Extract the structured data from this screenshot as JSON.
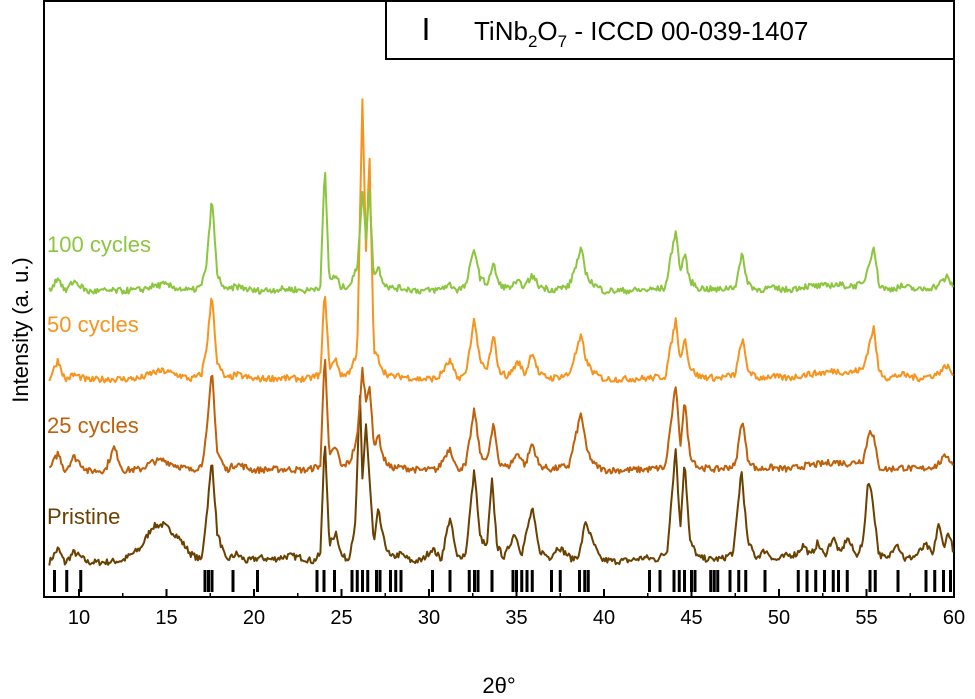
{
  "chart_data": {
    "type": "line",
    "xlabel": "2θ°",
    "ylabel": "Intensity (a. u.)",
    "xlim": [
      8,
      60
    ],
    "x_ticks": [
      10,
      15,
      20,
      25,
      30,
      35,
      40,
      45,
      50,
      55,
      60
    ],
    "x_tick_labels": [
      "10",
      "15",
      "20",
      "25",
      "30",
      "35",
      "40",
      "45",
      "50",
      "55",
      "60"
    ],
    "y_ticks_shown": false,
    "legend": {
      "placement": "top-right",
      "entry": {
        "compound_base": "TiNb",
        "sub1": "2",
        "mid": "O",
        "sub2": "7",
        "suffix": " - ICCD 00-039-1407"
      }
    },
    "series": [
      {
        "name": "Pristine",
        "color": "#6b4100",
        "baseline": 0,
        "x": [
          8.3,
          8.8,
          9.2,
          9.7,
          10.5,
          11.5,
          12.5,
          13.5,
          14.2,
          14.8,
          15.6,
          16.4,
          17.0,
          17.3,
          17.6,
          17.9,
          18.4,
          19.0,
          19.6,
          20.3,
          21.0,
          22.0,
          22.7,
          23.4,
          23.8,
          24.05,
          24.3,
          24.7,
          25.0,
          25.4,
          25.8,
          26.05,
          26.2,
          26.4,
          26.6,
          26.85,
          27.1,
          27.4,
          27.8,
          28.4,
          29.0,
          29.6,
          30.2,
          30.7,
          31.2,
          31.6,
          32.1,
          32.6,
          32.9,
          33.3,
          33.6,
          33.9,
          34.3,
          34.9,
          35.3,
          35.9,
          36.3,
          36.9,
          37.4,
          38.2,
          38.6,
          38.95,
          39.3,
          39.8,
          40.6,
          41.5,
          42.3,
          43.0,
          43.6,
          44.1,
          44.35,
          44.6,
          44.9,
          45.4,
          46.1,
          46.8,
          47.4,
          47.85,
          48.2,
          48.7,
          49.2,
          49.8,
          50.4,
          51.0,
          51.4,
          51.8,
          52.2,
          52.6,
          53.1,
          53.5,
          53.9,
          54.4,
          54.8,
          55.1,
          55.35,
          55.7,
          56.2,
          56.7,
          57.2,
          57.8,
          58.4,
          58.8,
          59.1,
          59.4,
          59.7,
          60.0
        ],
        "y": [
          0.03,
          0.18,
          0.02,
          0.14,
          0.03,
          0.03,
          0.05,
          0.18,
          0.42,
          0.44,
          0.32,
          0.12,
          0.05,
          0.55,
          1.15,
          0.35,
          0.05,
          0.12,
          0.04,
          0.08,
          0.06,
          0.1,
          0.08,
          0.04,
          0.12,
          1.42,
          0.22,
          0.36,
          0.1,
          0.06,
          0.45,
          1.88,
          0.9,
          1.55,
          0.95,
          0.22,
          0.6,
          0.28,
          0.08,
          0.12,
          0.04,
          0.05,
          0.18,
          0.06,
          0.52,
          0.08,
          0.12,
          1.05,
          0.32,
          0.18,
          0.92,
          0.2,
          0.08,
          0.35,
          0.12,
          0.62,
          0.16,
          0.08,
          0.2,
          0.06,
          0.12,
          0.48,
          0.28,
          0.06,
          0.04,
          0.05,
          0.08,
          0.06,
          0.14,
          1.28,
          0.38,
          1.16,
          0.26,
          0.08,
          0.06,
          0.07,
          0.14,
          1.04,
          0.26,
          0.08,
          0.16,
          0.05,
          0.1,
          0.12,
          0.22,
          0.1,
          0.24,
          0.1,
          0.3,
          0.12,
          0.3,
          0.1,
          0.24,
          0.95,
          0.7,
          0.12,
          0.06,
          0.25,
          0.06,
          0.1,
          0.22,
          0.1,
          0.46,
          0.2,
          0.36,
          0.12
        ]
      },
      {
        "name": "25 cycles",
        "color": "#c0600a",
        "baseline": 0.98,
        "x": [
          8.3,
          8.8,
          9.2,
          9.7,
          10.5,
          11.5,
          12.0,
          12.5,
          13.5,
          14.2,
          14.8,
          15.6,
          16.4,
          17.0,
          17.3,
          17.6,
          17.9,
          18.4,
          19.0,
          20.0,
          21.0,
          22.0,
          23.0,
          23.8,
          24.05,
          24.3,
          24.7,
          25.0,
          25.5,
          25.9,
          26.2,
          26.4,
          26.6,
          26.85,
          27.1,
          27.4,
          27.8,
          28.4,
          29.5,
          30.5,
          31.2,
          31.6,
          32.1,
          32.6,
          32.9,
          33.3,
          33.7,
          34.0,
          34.5,
          35.1,
          35.5,
          35.9,
          36.3,
          37.0,
          38.0,
          38.7,
          39.0,
          39.4,
          40.0,
          41.0,
          42.5,
          43.5,
          44.1,
          44.35,
          44.6,
          44.9,
          45.4,
          46.5,
          47.5,
          47.9,
          48.2,
          48.7,
          49.5,
          50.5,
          51.5,
          52.5,
          53.2,
          54.0,
          54.8,
          55.2,
          55.4,
          55.7,
          56.2,
          57.0,
          58.0,
          59.0,
          59.6,
          60.0
        ],
        "y": [
          0.05,
          0.24,
          0.04,
          0.2,
          0.04,
          0.05,
          0.3,
          0.05,
          0.06,
          0.14,
          0.16,
          0.1,
          0.05,
          0.1,
          0.45,
          1.15,
          0.25,
          0.05,
          0.12,
          0.05,
          0.06,
          0.06,
          0.05,
          0.1,
          1.38,
          0.2,
          0.3,
          0.08,
          0.15,
          0.4,
          1.15,
          0.8,
          1.0,
          0.3,
          0.45,
          0.18,
          0.08,
          0.08,
          0.05,
          0.06,
          0.3,
          0.06,
          0.1,
          0.72,
          0.25,
          0.14,
          0.55,
          0.14,
          0.08,
          0.24,
          0.1,
          0.35,
          0.1,
          0.06,
          0.1,
          0.68,
          0.28,
          0.12,
          0.05,
          0.05,
          0.06,
          0.08,
          0.98,
          0.3,
          0.82,
          0.22,
          0.08,
          0.06,
          0.1,
          0.62,
          0.18,
          0.06,
          0.08,
          0.06,
          0.1,
          0.12,
          0.14,
          0.12,
          0.16,
          0.5,
          0.42,
          0.08,
          0.06,
          0.08,
          0.06,
          0.1,
          0.22,
          0.08
        ]
      },
      {
        "name": "50 cycles",
        "color": "#f7941d",
        "baseline": 1.97,
        "x": [
          8.3,
          8.8,
          9.2,
          9.7,
          10.5,
          11.5,
          12.5,
          13.5,
          14.2,
          14.8,
          15.6,
          16.4,
          17.0,
          17.3,
          17.6,
          17.9,
          18.4,
          19.0,
          20.0,
          21.0,
          22.0,
          23.0,
          23.8,
          24.05,
          24.3,
          24.7,
          25.0,
          25.5,
          25.9,
          26.2,
          26.4,
          26.6,
          26.85,
          27.1,
          27.4,
          27.8,
          28.4,
          29.5,
          30.5,
          31.2,
          31.6,
          32.1,
          32.6,
          32.9,
          33.3,
          33.7,
          34.0,
          34.5,
          35.1,
          35.5,
          35.9,
          36.3,
          37.0,
          38.0,
          38.7,
          39.0,
          39.4,
          40.0,
          41.0,
          42.5,
          43.5,
          44.1,
          44.35,
          44.6,
          44.9,
          45.4,
          46.5,
          47.5,
          47.9,
          48.2,
          48.7,
          49.5,
          50.5,
          51.5,
          52.5,
          53.2,
          54.0,
          54.8,
          55.2,
          55.4,
          55.7,
          56.2,
          57.0,
          58.0,
          59.0,
          59.6,
          60.0
        ],
        "y": [
          0.05,
          0.26,
          0.04,
          0.1,
          0.04,
          0.05,
          0.05,
          0.06,
          0.12,
          0.14,
          0.1,
          0.05,
          0.1,
          0.4,
          0.98,
          0.22,
          0.05,
          0.1,
          0.05,
          0.06,
          0.06,
          0.05,
          0.1,
          1.05,
          0.18,
          0.26,
          0.08,
          0.14,
          0.35,
          3.1,
          1.4,
          2.5,
          0.35,
          0.28,
          0.14,
          0.08,
          0.08,
          0.05,
          0.06,
          0.25,
          0.06,
          0.1,
          0.72,
          0.25,
          0.14,
          0.52,
          0.14,
          0.08,
          0.24,
          0.1,
          0.36,
          0.1,
          0.06,
          0.1,
          0.52,
          0.24,
          0.12,
          0.05,
          0.05,
          0.06,
          0.08,
          0.7,
          0.25,
          0.52,
          0.18,
          0.08,
          0.06,
          0.1,
          0.5,
          0.16,
          0.06,
          0.08,
          0.06,
          0.1,
          0.12,
          0.14,
          0.12,
          0.16,
          0.46,
          0.62,
          0.14,
          0.06,
          0.1,
          0.06,
          0.1,
          0.2,
          0.08
        ]
      },
      {
        "name": "100 cycles",
        "color": "#8cc63f",
        "baseline": 2.93,
        "x": [
          8.3,
          8.8,
          9.2,
          9.7,
          10.5,
          11.5,
          12.5,
          13.5,
          14.2,
          14.8,
          15.6,
          16.4,
          17.0,
          17.3,
          17.6,
          17.9,
          18.4,
          19.0,
          20.0,
          21.0,
          22.0,
          23.0,
          23.8,
          24.05,
          24.3,
          24.7,
          25.0,
          25.5,
          25.9,
          26.2,
          26.4,
          26.6,
          26.85,
          27.1,
          27.4,
          27.8,
          28.4,
          29.5,
          30.5,
          31.2,
          31.6,
          32.1,
          32.6,
          32.9,
          33.3,
          33.7,
          34.0,
          34.5,
          35.1,
          35.5,
          35.9,
          36.3,
          37.0,
          38.0,
          38.7,
          39.0,
          39.4,
          40.0,
          41.0,
          42.5,
          43.5,
          44.1,
          44.35,
          44.6,
          44.9,
          45.4,
          46.5,
          47.5,
          47.9,
          48.2,
          48.7,
          49.5,
          50.5,
          51.5,
          52.5,
          53.2,
          54.0,
          54.8,
          55.2,
          55.4,
          55.7,
          56.2,
          57.0,
          58.0,
          59.0,
          59.6,
          60.0
        ],
        "y": [
          0.05,
          0.2,
          0.04,
          0.16,
          0.04,
          0.05,
          0.05,
          0.06,
          0.1,
          0.12,
          0.08,
          0.05,
          0.1,
          0.35,
          1.07,
          0.22,
          0.05,
          0.1,
          0.05,
          0.06,
          0.07,
          0.05,
          0.1,
          1.42,
          0.18,
          0.2,
          0.08,
          0.12,
          0.3,
          1.15,
          0.62,
          1.15,
          0.2,
          0.32,
          0.14,
          0.08,
          0.08,
          0.05,
          0.06,
          0.12,
          0.06,
          0.1,
          0.52,
          0.2,
          0.12,
          0.34,
          0.12,
          0.08,
          0.14,
          0.1,
          0.22,
          0.1,
          0.06,
          0.1,
          0.5,
          0.22,
          0.12,
          0.05,
          0.05,
          0.06,
          0.08,
          0.72,
          0.25,
          0.46,
          0.16,
          0.08,
          0.06,
          0.1,
          0.45,
          0.14,
          0.06,
          0.08,
          0.06,
          0.1,
          0.1,
          0.12,
          0.1,
          0.12,
          0.38,
          0.56,
          0.12,
          0.06,
          0.1,
          0.06,
          0.1,
          0.2,
          0.08
        ]
      }
    ],
    "reference_ticks": [
      8.6,
      9.3,
      10.1,
      17.2,
      17.4,
      17.6,
      18.8,
      20.2,
      23.6,
      24.0,
      24.6,
      25.6,
      25.9,
      26.2,
      26.5,
      27.0,
      27.2,
      27.8,
      28.1,
      28.4,
      30.2,
      31.2,
      32.3,
      32.6,
      32.8,
      33.6,
      34.8,
      35.0,
      35.3,
      35.6,
      35.9,
      37.0,
      37.5,
      38.6,
      38.9,
      39.1,
      42.6,
      43.2,
      44.0,
      44.3,
      44.6,
      45.0,
      45.2,
      46.1,
      46.3,
      46.5,
      47.2,
      47.7,
      48.1,
      49.2,
      51.1,
      51.6,
      52.1,
      52.6,
      53.1,
      53.4,
      53.9,
      55.2,
      55.5,
      56.8,
      58.4,
      58.9,
      59.4,
      59.8
    ]
  }
}
